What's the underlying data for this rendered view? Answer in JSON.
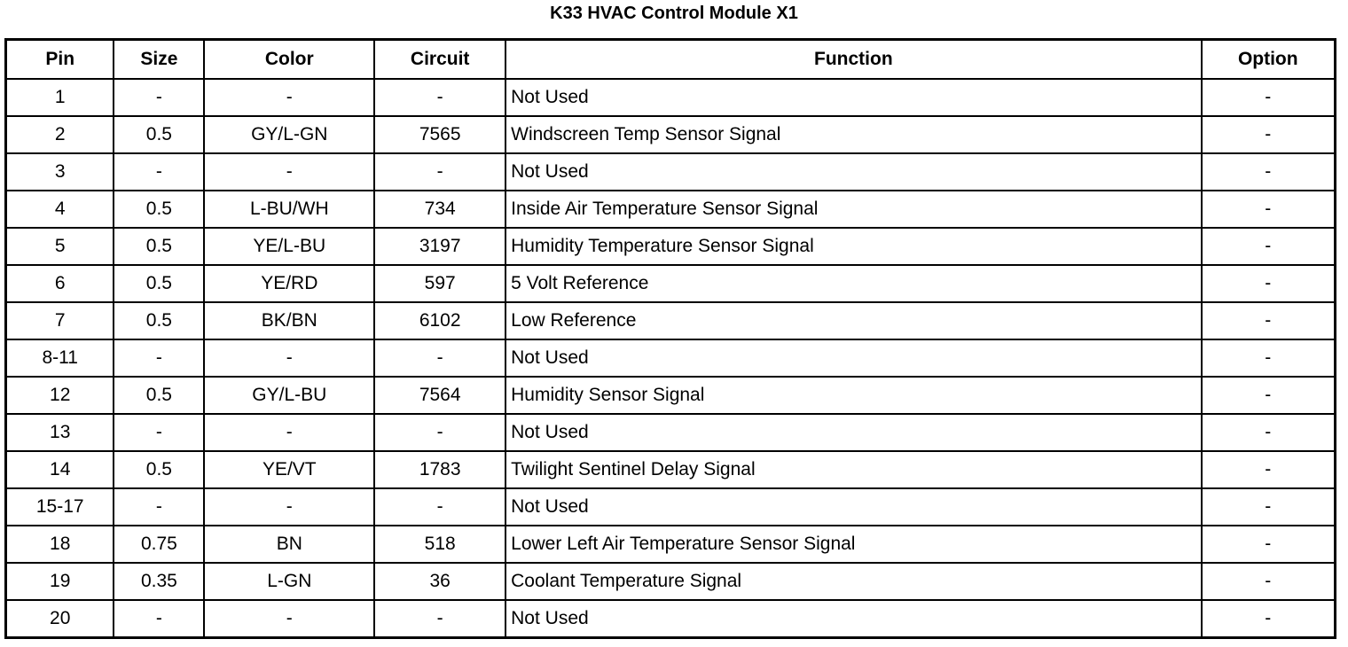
{
  "title": "K33 HVAC Control Module X1",
  "columns": [
    "Pin",
    "Size",
    "Color",
    "Circuit",
    "Function",
    "Option"
  ],
  "rows": [
    [
      "1",
      "-",
      "-",
      "-",
      "Not Used",
      "-"
    ],
    [
      "2",
      "0.5",
      "GY/L-GN",
      "7565",
      "Windscreen Temp Sensor Signal",
      "-"
    ],
    [
      "3",
      "-",
      "-",
      "-",
      "Not Used",
      "-"
    ],
    [
      "4",
      "0.5",
      "L-BU/WH",
      "734",
      "Inside Air Temperature Sensor Signal",
      "-"
    ],
    [
      "5",
      "0.5",
      "YE/L-BU",
      "3197",
      "Humidity Temperature Sensor Signal",
      "-"
    ],
    [
      "6",
      "0.5",
      "YE/RD",
      "597",
      "5 Volt Reference",
      "-"
    ],
    [
      "7",
      "0.5",
      "BK/BN",
      "6102",
      "Low Reference",
      "-"
    ],
    [
      "8-11",
      "-",
      "-",
      "-",
      "Not Used",
      "-"
    ],
    [
      "12",
      "0.5",
      "GY/L-BU",
      "7564",
      "Humidity Sensor Signal",
      "-"
    ],
    [
      "13",
      "-",
      "-",
      "-",
      "Not Used",
      "-"
    ],
    [
      "14",
      "0.5",
      "YE/VT",
      "1783",
      "Twilight Sentinel Delay Signal",
      "-"
    ],
    [
      "15-17",
      "-",
      "-",
      "-",
      "Not Used",
      "-"
    ],
    [
      "18",
      "0.75",
      "BN",
      "518",
      "Lower Left Air Temperature Sensor Signal",
      "-"
    ],
    [
      "19",
      "0.35",
      "L-GN",
      "36",
      "Coolant Temperature Signal",
      "-"
    ],
    [
      "20",
      "-",
      "-",
      "-",
      "Not Used",
      "-"
    ]
  ]
}
